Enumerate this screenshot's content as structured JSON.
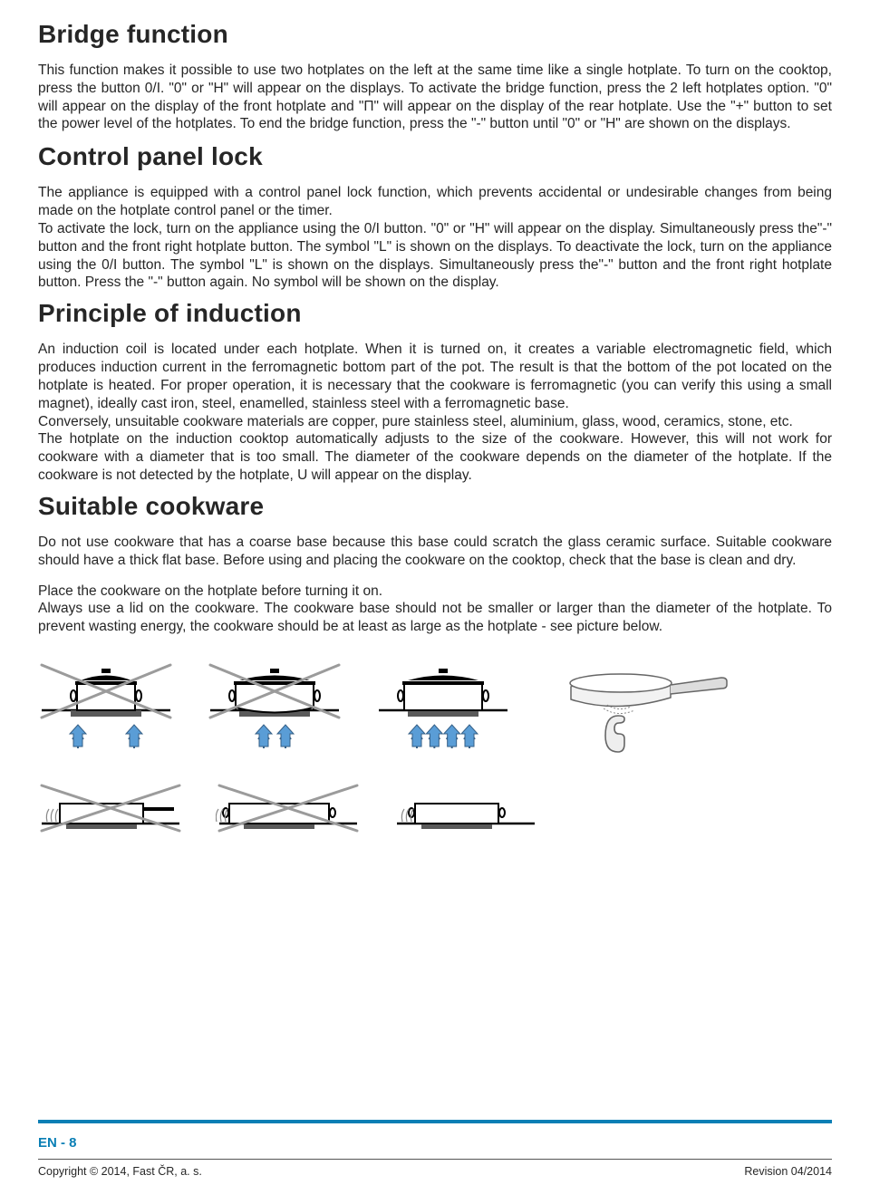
{
  "sections": {
    "bridge": {
      "title": "Bridge function",
      "body": "This function makes it possible to use two hotplates on the left at the same time like a single hotplate. To turn on the cooktop, press the button 0/I. \"0\" or \"H\" will appear on the displays. To activate the bridge function, press the 2 left hotplates option. \"0\" will appear on the display of the front hotplate and \"П\" will appear on the display of the rear hotplate. Use the \"+\" button to set the power level of the hotplates. To end the bridge function, press the \"-\" button until \"0\" or \"H\" are shown on the displays."
    },
    "lock": {
      "title": "Control panel lock",
      "body1": "The appliance is equipped with a control panel lock function, which prevents accidental or undesirable changes from being made on the hotplate control panel or the timer.",
      "body2": "To activate the lock, turn on the appliance using the 0/I button. \"0\" or \"H\" will appear on the display. Simultaneously press the\"-\" button and the front right hotplate button. The symbol \"L\" is shown on the displays. To deactivate the lock, turn on the appliance using the 0/I button. The symbol \"L\" is shown on the displays. Simultaneously press the\"-\" button and the front right hotplate button. Press the \"-\" button again. No symbol will be shown on the display."
    },
    "induction": {
      "title": "Principle of induction",
      "body1": "An induction coil is located under each hotplate. When it is turned on, it creates a variable electromagnetic field, which produces induction current in the ferromagnetic bottom part of the pot. The result is that the bottom of the pot located on the hotplate is heated. For proper operation, it is necessary that the cookware is ferromagnetic (you can verify this using a small magnet), ideally cast iron, steel, enamelled, stainless steel with a ferromagnetic base.",
      "body2": "Conversely, unsuitable cookware materials are copper, pure stainless steel, aluminium, glass, wood, ceramics, stone, etc.",
      "body3": "The hotplate on the induction cooktop automatically adjusts to the size of the cookware. However, this will not work for cookware with a diameter that is too small. The diameter of the cookware depends on the diameter of the hotplate. If the cookware is not detected by the hotplate, U will appear on the display."
    },
    "cookware": {
      "title": "Suitable cookware",
      "body1": "Do not use cookware that has a coarse base because this base could scratch the glass ceramic surface. Suitable cookware should have a thick flat base. Before using and placing the cookware on the cooktop, check that the base is clean and dry.",
      "body2": "Place the cookware on the hotplate before turning it on.",
      "body3": "Always use a lid on the cookware. The cookware base should not be smaller or larger than the diameter of the hotplate. To prevent wasting energy, the cookware should be at least as large as the hotplate - see picture below."
    }
  },
  "footer": {
    "page": "EN - 8",
    "copyright": "Copyright © 2014, Fast ČR, a. s.",
    "revision": "Revision 04/2014"
  },
  "colors": {
    "accent": "#0a7fb5",
    "arrow_fill": "#5a9dd6",
    "arrow_stroke": "#355f86",
    "cross": "#9b9b9b",
    "plate": "#5a5a5a",
    "text": "#262626"
  },
  "illustrations": {
    "row1": [
      {
        "name": "pot-too-small",
        "crossed": true,
        "pot_width": 64,
        "plate_width": 78,
        "arrows": 2,
        "arrow_spread": "wide",
        "bottom": "flat"
      },
      {
        "name": "pot-curved-bottom",
        "crossed": true,
        "pot_width": 86,
        "plate_width": 78,
        "arrows": 2,
        "arrow_spread": "narrow",
        "bottom": "curved"
      },
      {
        "name": "pot-correct",
        "crossed": false,
        "pot_width": 86,
        "plate_width": 78,
        "arrows": 4,
        "arrow_spread": "full",
        "bottom": "flat"
      },
      {
        "name": "saucepan-magnet",
        "type": "saucepan"
      }
    ],
    "row2": [
      {
        "name": "pan-curved-base",
        "crossed": true,
        "pot_width": 92,
        "plate_width": 78,
        "handled": true
      },
      {
        "name": "pot-oversize",
        "crossed": true,
        "pot_width": 110,
        "plate_width": 78
      },
      {
        "name": "pot-ok",
        "crossed": false,
        "pot_width": 92,
        "plate_width": 78
      }
    ]
  }
}
